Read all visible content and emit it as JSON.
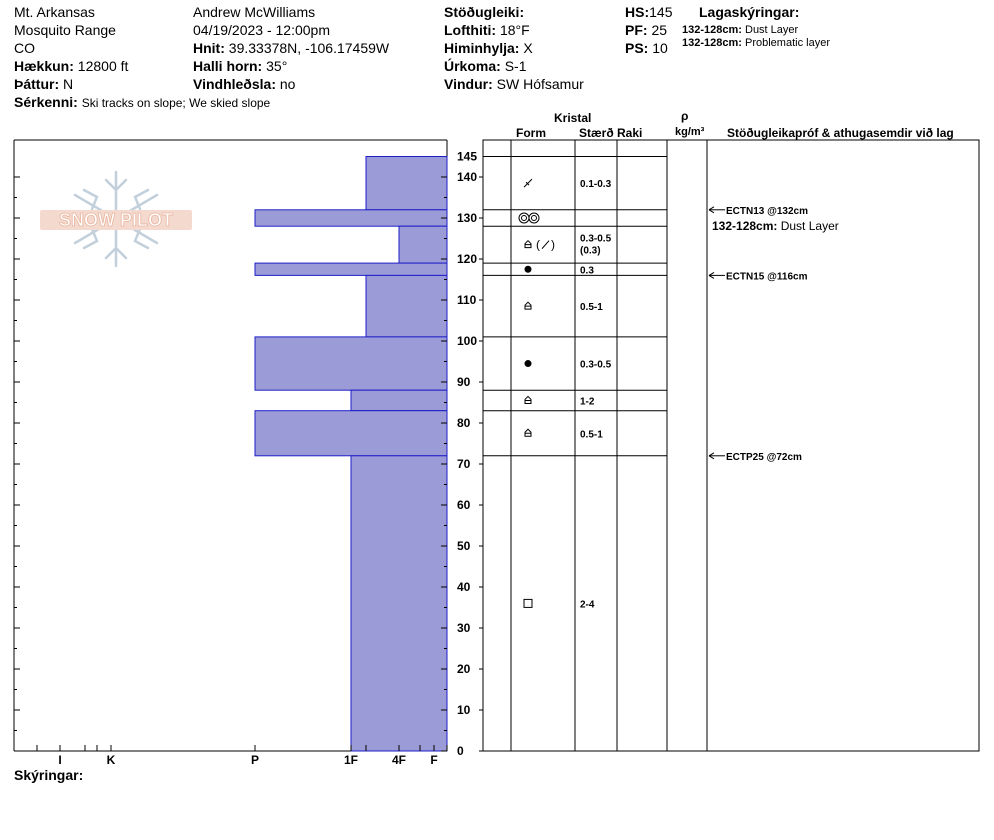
{
  "header": {
    "location": "Mt. Arkansas",
    "range": "Mosquito Range",
    "state": "CO",
    "elevation_label": "Hækkun:",
    "elevation": "12800 ft",
    "aspect_label": "Þáttur:",
    "aspect": "N",
    "features_label": "Sérkenni:",
    "features": "Ski tracks on slope; We skied slope",
    "observer": "Andrew McWilliams",
    "datetime": "04/19/2023 - 12:00pm",
    "coords_label": "Hnit:",
    "coords": "39.33378N, -106.17459W",
    "slope_label": "Halli horn:",
    "slope": "35°",
    "wind_loading_label": "Vindhleðsla:",
    "wind_loading": "no",
    "stability_label": "Stöðugleiki:",
    "stability": "",
    "air_temp_label": "Lofthiti:",
    "air_temp": "18°F",
    "sky_label": "Himinhylja:",
    "sky": "X",
    "precip_label": "Úrkoma:",
    "precip": "S-1",
    "wind_label": "Vindur:",
    "wind": "SW Hófsamur",
    "hs_label": "HS:",
    "hs": "145",
    "pf_label": "PF:",
    "pf": "25",
    "ps_label": "PS:",
    "ps": "10",
    "layer_notes_title": "Lagaskýringar:",
    "layer_notes": [
      {
        "range": "132-128cm:",
        "text": "Dust Layer"
      },
      {
        "range": "132-128cm:",
        "text": "Problematic layer"
      }
    ]
  },
  "columns": {
    "crystal": "Kristal",
    "form": "Form",
    "size": "Stærð",
    "moisture": "Raki",
    "density_symbol": "ρ",
    "density_unit": "kg/m³",
    "tests_comments": "Stöðugleikapróf & athugasemdir við lag"
  },
  "legend_label": "Skýringar:",
  "chart_data": {
    "type": "bar",
    "title": "",
    "orientation": "horizontal",
    "ylabel": "",
    "ylim": [
      0,
      145
    ],
    "y_ticks": [
      0,
      10,
      20,
      30,
      40,
      50,
      60,
      70,
      80,
      90,
      100,
      110,
      120,
      130,
      140,
      145
    ],
    "x_ticks": [
      "I",
      "K",
      "P",
      "1F",
      "4F",
      "F"
    ],
    "hardness_layers": [
      {
        "top": 145,
        "bottom": 132,
        "hardness": "4F-"
      },
      {
        "top": 132,
        "bottom": 128,
        "hardness": "P"
      },
      {
        "top": 128,
        "bottom": 119,
        "hardness": "4F"
      },
      {
        "top": 119,
        "bottom": 116,
        "hardness": "P"
      },
      {
        "top": 116,
        "bottom": 101,
        "hardness": "4F-"
      },
      {
        "top": 101,
        "bottom": 88,
        "hardness": "P"
      },
      {
        "top": 88,
        "bottom": 83,
        "hardness": "1F"
      },
      {
        "top": 83,
        "bottom": 72,
        "hardness": "P"
      },
      {
        "top": 72,
        "bottom": 0,
        "hardness": "1F"
      }
    ],
    "crystal_layers": [
      {
        "top": 145,
        "bottom": 132,
        "form": "DF",
        "size": "0.1-0.3"
      },
      {
        "top": 132,
        "bottom": 128,
        "form": "MFcr",
        "size": ""
      },
      {
        "top": 128,
        "bottom": 119,
        "form": "FCxr(DF)",
        "size": "0.3-0.5",
        "size2": "(0.3)"
      },
      {
        "top": 119,
        "bottom": 116,
        "form": "RG",
        "size": "0.3"
      },
      {
        "top": 116,
        "bottom": 101,
        "form": "FC",
        "size": "0.5-1"
      },
      {
        "top": 101,
        "bottom": 88,
        "form": "RG",
        "size": "0.3-0.5"
      },
      {
        "top": 88,
        "bottom": 83,
        "form": "FC",
        "size": "1-2"
      },
      {
        "top": 83,
        "bottom": 72,
        "form": "FC",
        "size": "0.5-1"
      },
      {
        "top": 72,
        "bottom": 0,
        "form": "FCso",
        "size": "2-4"
      }
    ],
    "stability_tests": [
      {
        "depth": 132,
        "label": "ECTN13 @132cm"
      },
      {
        "depth": 116,
        "label": "ECTN15 @116cm"
      },
      {
        "depth": 72,
        "label": "ECTP25 @72cm"
      }
    ],
    "comments": [
      {
        "depth": 128,
        "range": "132-128cm:",
        "text": "Dust Layer"
      }
    ]
  },
  "logo": {
    "text": "SNOW PILOT"
  }
}
